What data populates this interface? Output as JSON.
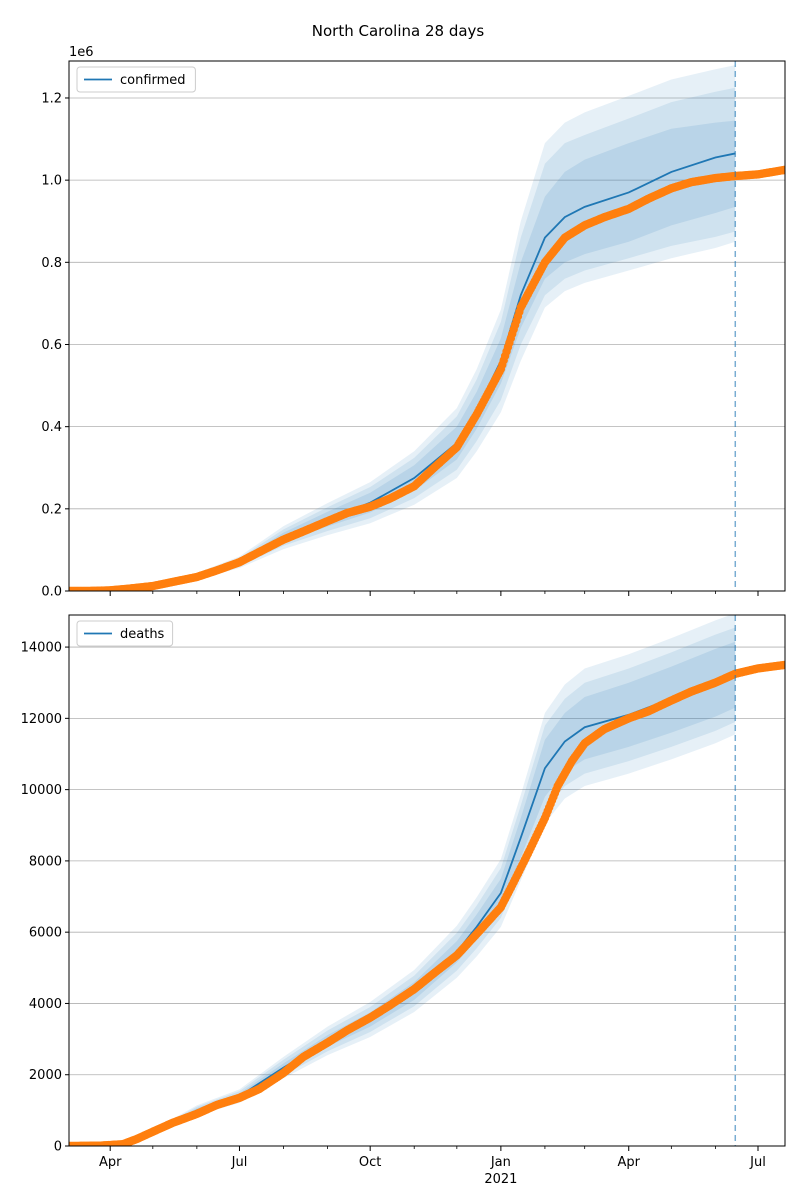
{
  "chart_data": {
    "type": "line",
    "title": "North Carolina 28 days",
    "x_axis": {
      "tick_labels": [
        "Apr",
        "Jul",
        "Oct",
        "Jan",
        "Apr",
        "Jul"
      ],
      "tick_dates": [
        "2020-04-01",
        "2020-07-01",
        "2020-10-01",
        "2021-01-01",
        "2021-04-01",
        "2021-07-01"
      ],
      "year_label": "2021",
      "range": [
        "2020-03-03",
        "2021-07-20"
      ],
      "forecast_start": "2021-06-15"
    },
    "panels": [
      {
        "name": "confirmed",
        "legend_label": "confirmed",
        "legend_position": "upper-left",
        "grid": true,
        "ylim": [
          0,
          1290000
        ],
        "offset_label": "1e6",
        "yticks": [
          0,
          200000,
          400000,
          600000,
          800000,
          1000000,
          1200000
        ],
        "ytick_labels": [
          "0.0",
          "0.2",
          "0.4",
          "0.6",
          "0.8",
          "1.0",
          "1.2"
        ],
        "model": {
          "dates": [
            "2020-03-03",
            "2020-04-01",
            "2020-05-01",
            "2020-06-01",
            "2020-07-01",
            "2020-08-01",
            "2020-09-01",
            "2020-10-01",
            "2020-11-01",
            "2020-12-01",
            "2020-12-15",
            "2021-01-01",
            "2021-01-15",
            "2021-02-01",
            "2021-02-15",
            "2021-03-01",
            "2021-04-01",
            "2021-05-01",
            "2021-06-01",
            "2021-06-15"
          ],
          "median": [
            1000,
            4000,
            14000,
            36000,
            70000,
            130000,
            175000,
            215000,
            275000,
            360000,
            440000,
            560000,
            720000,
            860000,
            910000,
            935000,
            970000,
            1020000,
            1055000,
            1065000
          ],
          "band_50": [
            [
              1000,
              1000
            ],
            [
              3600,
              4400
            ],
            [
              12500,
              15500
            ],
            [
              33000,
              39000
            ],
            [
              64000,
              76000
            ],
            [
              118000,
              142000
            ],
            [
              157000,
              193000
            ],
            [
              191000,
              239000
            ],
            [
              244000,
              306000
            ],
            [
              320000,
              400000
            ],
            [
              395000,
              485000
            ],
            [
              505000,
              615000
            ],
            [
              640000,
              800000
            ],
            [
              760000,
              960000
            ],
            [
              800000,
              1020000
            ],
            [
              820000,
              1050000
            ],
            [
              850000,
              1090000
            ],
            [
              890000,
              1125000
            ],
            [
              920000,
              1140000
            ],
            [
              935000,
              1145000
            ]
          ],
          "band_80": [
            [
              1000,
              1000
            ],
            [
              3300,
              4700
            ],
            [
              11500,
              16500
            ],
            [
              31000,
              41000
            ],
            [
              60000,
              80000
            ],
            [
              110000,
              150000
            ],
            [
              146000,
              204000
            ],
            [
              177000,
              253000
            ],
            [
              226000,
              324000
            ],
            [
              295000,
              425000
            ],
            [
              365000,
              515000
            ],
            [
              465000,
              655000
            ],
            [
              600000,
              860000
            ],
            [
              720000,
              1040000
            ],
            [
              760000,
              1090000
            ],
            [
              780000,
              1110000
            ],
            [
              810000,
              1150000
            ],
            [
              840000,
              1190000
            ],
            [
              862000,
              1215000
            ],
            [
              875000,
              1225000
            ]
          ],
          "band_95": [
            [
              1000,
              1000
            ],
            [
              3000,
              5000
            ],
            [
              10500,
              17500
            ],
            [
              28000,
              44000
            ],
            [
              56000,
              84000
            ],
            [
              102000,
              158000
            ],
            [
              136000,
              214000
            ],
            [
              165000,
              265000
            ],
            [
              210000,
              340000
            ],
            [
              275000,
              445000
            ],
            [
              340000,
              540000
            ],
            [
              435000,
              685000
            ],
            [
              560000,
              900000
            ],
            [
              690000,
              1090000
            ],
            [
              730000,
              1140000
            ],
            [
              750000,
              1165000
            ],
            [
              780000,
              1205000
            ],
            [
              810000,
              1245000
            ],
            [
              835000,
              1270000
            ],
            [
              850000,
              1280000
            ]
          ]
        },
        "observed": {
          "dates": [
            "2020-03-03",
            "2020-03-20",
            "2020-04-01",
            "2020-04-15",
            "2020-05-01",
            "2020-05-15",
            "2020-06-01",
            "2020-06-15",
            "2020-07-01",
            "2020-07-15",
            "2020-08-01",
            "2020-08-15",
            "2020-09-01",
            "2020-09-15",
            "2020-10-01",
            "2020-10-15",
            "2020-11-01",
            "2020-11-15",
            "2020-12-01",
            "2020-12-15",
            "2021-01-01",
            "2021-01-15",
            "2021-02-01",
            "2021-02-15",
            "2021-03-01",
            "2021-03-15",
            "2021-04-01",
            "2021-04-15",
            "2021-05-01",
            "2021-05-15",
            "2021-06-01",
            "2021-06-15",
            "2021-07-01",
            "2021-07-20"
          ],
          "values": [
            0,
            300,
            1500,
            6000,
            12000,
            22000,
            34000,
            50000,
            70000,
            95000,
            125000,
            145000,
            170000,
            190000,
            205000,
            225000,
            255000,
            300000,
            350000,
            430000,
            540000,
            690000,
            800000,
            860000,
            890000,
            910000,
            930000,
            955000,
            980000,
            995000,
            1005000,
            1010000,
            1014000,
            1025000
          ]
        }
      },
      {
        "name": "deaths",
        "legend_label": "deaths",
        "legend_position": "upper-left",
        "grid": true,
        "ylim": [
          0,
          14900
        ],
        "yticks": [
          0,
          2000,
          4000,
          6000,
          8000,
          10000,
          12000,
          14000
        ],
        "ytick_labels": [
          "0",
          "2000",
          "4000",
          "6000",
          "8000",
          "10000",
          "12000",
          "14000"
        ],
        "model": {
          "dates": [
            "2020-03-03",
            "2020-04-01",
            "2020-04-15",
            "2020-05-01",
            "2020-06-01",
            "2020-07-01",
            "2020-08-01",
            "2020-09-01",
            "2020-10-01",
            "2020-11-01",
            "2020-12-01",
            "2020-12-15",
            "2021-01-01",
            "2021-01-15",
            "2021-02-01",
            "2021-02-15",
            "2021-03-01",
            "2021-04-01",
            "2021-05-01",
            "2021-06-01",
            "2021-06-15"
          ],
          "median": [
            0,
            20,
            120,
            380,
            1000,
            1400,
            2200,
            2950,
            3550,
            4350,
            5450,
            6150,
            7100,
            8650,
            10600,
            11350,
            11750,
            12100,
            12550,
            13050,
            13300
          ],
          "band_50": [
            [
              0,
              0
            ],
            [
              18,
              22
            ],
            [
              110,
              130
            ],
            [
              350,
              410
            ],
            [
              940,
              1060
            ],
            [
              1320,
              1480
            ],
            [
              2080,
              2320
            ],
            [
              2790,
              3110
            ],
            [
              3350,
              3750
            ],
            [
              4100,
              4600
            ],
            [
              5150,
              5750
            ],
            [
              5800,
              6500
            ],
            [
              6700,
              7500
            ],
            [
              8100,
              9200
            ],
            [
              9800,
              11400
            ],
            [
              10500,
              12150
            ],
            [
              10850,
              12600
            ],
            [
              11200,
              13000
            ],
            [
              11600,
              13450
            ],
            [
              12050,
              13950
            ],
            [
              12300,
              14150
            ]
          ],
          "band_80": [
            [
              0,
              0
            ],
            [
              16,
              24
            ],
            [
              100,
              140
            ],
            [
              330,
              430
            ],
            [
              900,
              1100
            ],
            [
              1260,
              1540
            ],
            [
              1980,
              2420
            ],
            [
              2660,
              3240
            ],
            [
              3200,
              3900
            ],
            [
              3920,
              4780
            ],
            [
              4920,
              5980
            ],
            [
              5550,
              6750
            ],
            [
              6400,
              7800
            ],
            [
              7750,
              9550
            ],
            [
              9400,
              11800
            ],
            [
              10100,
              12550
            ],
            [
              10450,
              13000
            ],
            [
              10800,
              13400
            ],
            [
              11200,
              13850
            ],
            [
              11650,
              14350
            ],
            [
              11900,
              14550
            ]
          ],
          "band_95": [
            [
              0,
              0
            ],
            [
              14,
              26
            ],
            [
              95,
              145
            ],
            [
              310,
              450
            ],
            [
              860,
              1140
            ],
            [
              1210,
              1590
            ],
            [
              1900,
              2500
            ],
            [
              2550,
              3350
            ],
            [
              3060,
              4040
            ],
            [
              3760,
              4940
            ],
            [
              4720,
              6180
            ],
            [
              5320,
              6980
            ],
            [
              6150,
              8050
            ],
            [
              7450,
              9850
            ],
            [
              9050,
              12150
            ],
            [
              9750,
              12950
            ],
            [
              10100,
              13400
            ],
            [
              10450,
              13800
            ],
            [
              10850,
              14250
            ],
            [
              11300,
              14750
            ],
            [
              11550,
              14950
            ]
          ]
        },
        "observed": {
          "dates": [
            "2020-03-03",
            "2020-03-25",
            "2020-04-10",
            "2020-04-20",
            "2020-05-01",
            "2020-05-15",
            "2020-06-01",
            "2020-06-15",
            "2020-07-01",
            "2020-07-15",
            "2020-08-01",
            "2020-08-15",
            "2020-09-01",
            "2020-09-15",
            "2020-10-01",
            "2020-10-15",
            "2020-11-01",
            "2020-11-15",
            "2020-12-01",
            "2020-12-15",
            "2021-01-01",
            "2021-01-10",
            "2021-01-20",
            "2021-02-01",
            "2021-02-10",
            "2021-02-20",
            "2021-03-01",
            "2021-03-15",
            "2021-04-01",
            "2021-04-15",
            "2021-05-01",
            "2021-05-15",
            "2021-06-01",
            "2021-06-15",
            "2021-07-01",
            "2021-07-20"
          ],
          "values": [
            0,
            10,
            50,
            200,
            400,
            650,
            900,
            1150,
            1350,
            1600,
            2050,
            2500,
            2900,
            3250,
            3600,
            3950,
            4400,
            4850,
            5350,
            5950,
            6700,
            7400,
            8200,
            9200,
            10100,
            10800,
            11300,
            11700,
            12000,
            12200,
            12500,
            12750,
            13000,
            13250,
            13400,
            13500
          ]
        }
      }
    ],
    "colors": {
      "median": "#1f77b4",
      "observed": "#ff7f0e",
      "band": "#1f77b4",
      "grid": "#b0b0b0",
      "forecast_line": "#1f77b4"
    }
  }
}
